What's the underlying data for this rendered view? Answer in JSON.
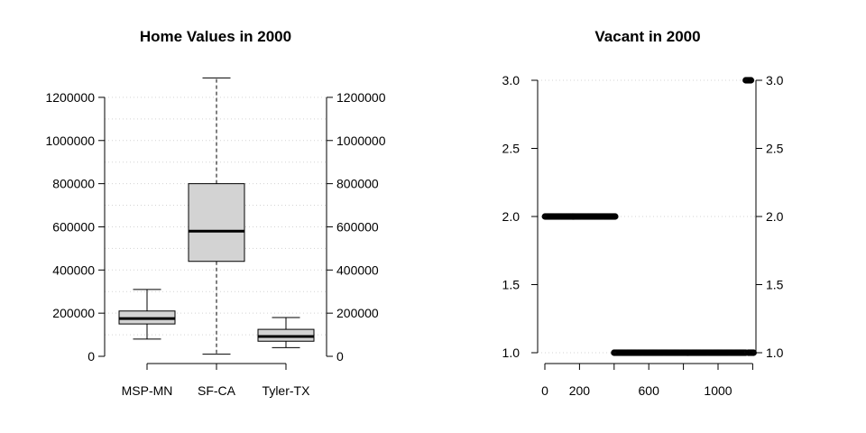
{
  "chart_data": [
    {
      "type": "box",
      "title": "Home Values in 2000",
      "xlabel": "",
      "ylabel": "",
      "categories": [
        "MSP-MN",
        "SF-CA",
        "Tyler-TX"
      ],
      "boxes": [
        {
          "whisker_low": 80000,
          "q1": 150000,
          "median": 175000,
          "q3": 210000,
          "whisker_high": 310000,
          "dashed_whiskers": false
        },
        {
          "whisker_low": 10000,
          "q1": 440000,
          "median": 580000,
          "q3": 800000,
          "whisker_high": 1290000,
          "dashed_whiskers": true
        },
        {
          "whisker_low": 40000,
          "q1": 70000,
          "median": 92000,
          "q3": 125000,
          "whisker_high": 180000,
          "dashed_whiskers": false
        }
      ],
      "yticks": [
        0,
        200000,
        400000,
        600000,
        800000,
        1000000,
        1200000
      ],
      "gridlines": [
        100000,
        200000,
        300000,
        400000,
        500000,
        600000,
        700000,
        800000,
        900000,
        1000000,
        1100000,
        1200000
      ],
      "ylim": [
        0,
        1300000
      ],
      "box_fill": "#d3d3d3",
      "grid": true
    },
    {
      "type": "scatter",
      "title": "Vacant in 2000",
      "xlabel": "",
      "ylabel": "",
      "series": [
        {
          "y": 2.0,
          "x_start": 1,
          "x_end": 410
        },
        {
          "y": 1.0,
          "x_start": 400,
          "x_end": 1160
        },
        {
          "y": 1.0,
          "x_start": 1175,
          "x_end": 1205
        },
        {
          "y": 3.0,
          "x_start": 1160,
          "x_end": 1190
        }
      ],
      "xticks": [
        0,
        200,
        600,
        1000
      ],
      "xtick_marks": [
        0,
        200,
        400,
        600,
        800,
        1000,
        1200
      ],
      "yticks": [
        1.0,
        1.5,
        2.0,
        2.5,
        3.0
      ],
      "ytick_labels": [
        "1.0",
        "1.5",
        "2.0",
        "2.5",
        "3.0"
      ],
      "gridlines": [
        1.0,
        2.0,
        3.0
      ],
      "xlim": [
        0,
        1220
      ],
      "ylim": [
        1.0,
        3.0
      ],
      "grid": true
    }
  ]
}
